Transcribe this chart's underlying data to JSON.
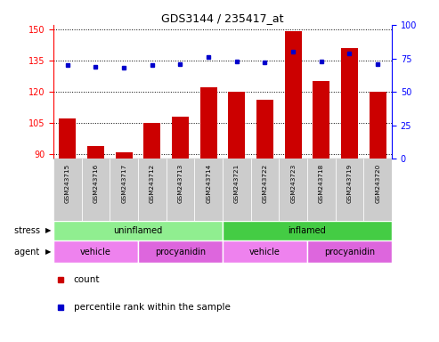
{
  "title": "GDS3144 / 235417_at",
  "samples": [
    "GSM243715",
    "GSM243716",
    "GSM243717",
    "GSM243712",
    "GSM243713",
    "GSM243714",
    "GSM243721",
    "GSM243722",
    "GSM243723",
    "GSM243718",
    "GSM243719",
    "GSM243720"
  ],
  "counts": [
    107,
    94,
    91,
    105,
    108,
    122,
    120,
    116,
    149,
    125,
    141,
    120
  ],
  "percentiles": [
    70,
    69,
    68,
    70,
    71,
    76,
    73,
    72,
    80,
    73,
    79,
    71
  ],
  "ylim_left": [
    88,
    152
  ],
  "ylim_right": [
    0,
    100
  ],
  "yticks_left": [
    90,
    105,
    120,
    135,
    150
  ],
  "yticks_right": [
    0,
    25,
    50,
    75,
    100
  ],
  "bar_color": "#CC0000",
  "dot_color": "#0000CC",
  "stress_groups": [
    {
      "label": "uninflamed",
      "start": 0,
      "end": 6,
      "color": "#90EE90"
    },
    {
      "label": "inflamed",
      "start": 6,
      "end": 12,
      "color": "#44CC44"
    }
  ],
  "agent_groups": [
    {
      "label": "vehicle",
      "start": 0,
      "end": 3,
      "color": "#EE82EE"
    },
    {
      "label": "procyanidin",
      "start": 3,
      "end": 6,
      "color": "#EE82EE"
    },
    {
      "label": "vehicle",
      "start": 6,
      "end": 9,
      "color": "#EE82EE"
    },
    {
      "label": "procyanidin",
      "start": 9,
      "end": 12,
      "color": "#EE82EE"
    }
  ],
  "legend_count_label": "count",
  "legend_percentile_label": "percentile rank within the sample",
  "stress_label": "stress",
  "agent_label": "agent"
}
